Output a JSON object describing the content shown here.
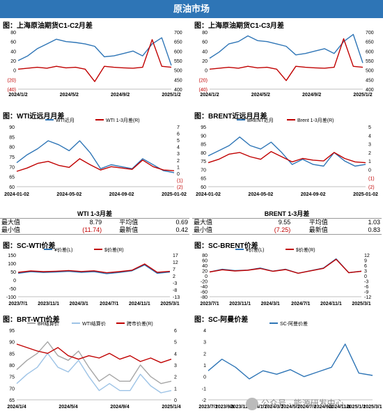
{
  "header": {
    "title": "原油市场"
  },
  "watermark": {
    "text": "公众号 · 能源研发中心"
  },
  "stats": [
    {
      "title": "WTI 1-3月差",
      "rows": [
        {
          "l1": "最大值",
          "v1": "8.79",
          "l2": "平均值",
          "v2": "0.69"
        },
        {
          "l1": "最小值",
          "v1": "(11.74)",
          "l2": "最新值",
          "v2": "0.42"
        }
      ]
    },
    {
      "title": "BRENT 1-3月差",
      "rows": [
        {
          "l1": "最大值",
          "v1": "9.55",
          "l2": "平均值",
          "v2": "1.03"
        },
        {
          "l1": "最小值",
          "v1": "(7.25)",
          "l2": "最新值",
          "v2": "0.83"
        }
      ]
    }
  ],
  "chart_data": [
    {
      "type": "line",
      "title": "图：上海原油期货C1-C2月差",
      "x": [
        "2024/1/2",
        "2024/2/1",
        "2024/3/1",
        "2024/4/1",
        "2024/5/2",
        "2024/6/3",
        "2024/7/1",
        "2024/8/1",
        "2024/9/2",
        "2024/10/8",
        "2024/11/1",
        "2024/12/2",
        "2025/1/2",
        "2025/2/5",
        "2025/3/3",
        "2025/4/1",
        "2025/4/15"
      ],
      "x_ticks": [
        "2024/1/2",
        "2024/5/2",
        "2024/9/2",
        "2025/1/2"
      ],
      "left_axis": {
        "ticks": [
          "80",
          "60",
          "40",
          "20",
          "0",
          "(20)",
          "(40)"
        ],
        "min": -40,
        "max": 80
      },
      "right_axis": {
        "ticks": [
          "700",
          "650",
          "600",
          "550",
          "500",
          "450",
          "400"
        ],
        "min": 400,
        "max": 700
      },
      "series": [
        {
          "axis": "left",
          "color": "#2e75b6",
          "values": [
            20,
            30,
            45,
            55,
            65,
            60,
            58,
            55,
            50,
            28,
            30,
            35,
            40,
            30,
            55,
            68,
            10
          ]
        },
        {
          "axis": "right",
          "color": "#c00000",
          "values": [
            505,
            510,
            515,
            510,
            520,
            512,
            515,
            505,
            440,
            520,
            515,
            512,
            510,
            515,
            660,
            520,
            515
          ]
        }
      ]
    },
    {
      "type": "line",
      "title": "图：上海原油期货C1-C3月差",
      "x": [
        "2024/1/2",
        "2024/2/1",
        "2024/3/1",
        "2024/4/1",
        "2024/5/2",
        "2024/6/3",
        "2024/7/1",
        "2024/8/1",
        "2024/9/2",
        "2024/10/8",
        "2024/11/1",
        "2024/12/2",
        "2025/1/2",
        "2025/2/5",
        "2025/3/3",
        "2025/4/1",
        "2025/4/15"
      ],
      "x_ticks": [
        "2024/1/2",
        "2024/5/2",
        "2024/9/2",
        "2025/1/2"
      ],
      "left_axis": {
        "ticks": [
          "80",
          "60",
          "40",
          "20",
          "0",
          "(20)",
          "(40)"
        ],
        "min": -40,
        "max": 80
      },
      "right_axis": {
        "ticks": [
          "700",
          "650",
          "600",
          "550",
          "500",
          "450",
          "400"
        ],
        "min": 400,
        "max": 700
      },
      "series": [
        {
          "axis": "left",
          "color": "#2e75b6",
          "values": [
            25,
            38,
            55,
            60,
            72,
            62,
            60,
            55,
            50,
            32,
            35,
            40,
            45,
            35,
            60,
            75,
            15
          ]
        },
        {
          "axis": "right",
          "color": "#c00000",
          "values": [
            505,
            510,
            515,
            510,
            520,
            512,
            515,
            505,
            445,
            520,
            515,
            512,
            510,
            515,
            665,
            520,
            515
          ]
        }
      ]
    },
    {
      "type": "line",
      "title": "图：WTI近远月月差",
      "x": [
        "2024-01-02",
        "2024-02-01",
        "2024-03-01",
        "2024-04-01",
        "2024-05-02",
        "2024-06-03",
        "2024-07-01",
        "2024-08-01",
        "2024-09-03",
        "2024-10-01",
        "2024-11-01",
        "2024-12-02",
        "2025-01-02",
        "2025-02-03",
        "2025-03-03",
        "2025-04-01"
      ],
      "x_ticks": [
        "2024-01-02",
        "2024-05-02",
        "2024-09-02",
        "2025-01-02"
      ],
      "left_axis": {
        "ticks": [
          "90",
          "85",
          "80",
          "75",
          "70",
          "65",
          "60"
        ],
        "min": 60,
        "max": 90
      },
      "right_axis": {
        "ticks": [
          "7",
          "6",
          "5",
          "4",
          "3",
          "2",
          "1",
          "0",
          "(1)",
          "(2)"
        ],
        "min": -2,
        "max": 7
      },
      "legend": [
        "WTI近月",
        "WTI 1-3月差(R)"
      ],
      "series": [
        {
          "name": "WTI近月",
          "axis": "left",
          "color": "#2e75b6",
          "values": [
            72,
            76,
            79,
            83,
            81,
            78,
            83,
            77,
            69,
            71,
            70,
            69,
            74,
            71,
            68,
            67
          ]
        },
        {
          "name": "WTI 1-3月差(R)",
          "axis": "right",
          "color": "#c00000",
          "values": [
            0.3,
            0.8,
            1.5,
            1.8,
            1.2,
            0.9,
            2.2,
            1.3,
            0.5,
            1.0,
            0.8,
            0.6,
            2.0,
            1.0,
            0.5,
            0.4
          ]
        }
      ]
    },
    {
      "type": "line",
      "title": "图：BRENT近远月月差",
      "x": [
        "2024-01-02",
        "2024-02-01",
        "2024-03-01",
        "2024-04-01",
        "2024-05-02",
        "2024-06-03",
        "2024-07-01",
        "2024-08-01",
        "2024-09-03",
        "2024-10-01",
        "2024-11-01",
        "2024-12-02",
        "2025-01-02",
        "2025-02-03",
        "2025-03-03",
        "2025-04-01"
      ],
      "x_ticks": [
        "2024-01-02",
        "2024-05-02",
        "2024-09-02",
        "2025-01-02"
      ],
      "left_axis": {
        "ticks": [
          "95",
          "90",
          "85",
          "80",
          "75",
          "70",
          "65",
          "60"
        ],
        "min": 60,
        "max": 95
      },
      "right_axis": {
        "ticks": [
          "5",
          "4",
          "3",
          "2",
          "1",
          "0",
          "(1)",
          "(2)"
        ],
        "min": -2,
        "max": 5
      },
      "legend": [
        "BRENT近月",
        "Brent 1-3月差(R)"
      ],
      "series": [
        {
          "name": "BRENT近月",
          "axis": "left",
          "color": "#2e75b6",
          "values": [
            78,
            81,
            84,
            89,
            84,
            82,
            86,
            80,
            73,
            76,
            73,
            72,
            80,
            75,
            72,
            73
          ]
        },
        {
          "name": "Brent 1-3月差(R)",
          "axis": "right",
          "color": "#c00000",
          "values": [
            0.8,
            1.2,
            1.8,
            2.0,
            1.5,
            1.2,
            2.1,
            1.5,
            0.9,
            1.3,
            1.1,
            1.0,
            2.0,
            1.3,
            0.9,
            0.8
          ]
        }
      ]
    },
    {
      "type": "line",
      "title": "图：SC-WTI价差",
      "x": [
        "2023/7/1",
        "2023/9/1",
        "2023/11/1",
        "2024/1/1",
        "2024/3/1",
        "2024/5/1",
        "2024/7/1",
        "2024/9/1",
        "2024/11/1",
        "2025/1/1",
        "2025/2/15",
        "2025/3/1",
        "2025/3/25"
      ],
      "x_ticks": [
        "2023/7/1",
        "2023/11/1",
        "2024/3/1",
        "2024/7/1",
        "2024/11/1",
        "2025/3/1"
      ],
      "left_axis": {
        "ticks": [
          "150",
          "100",
          "50",
          "0",
          "-50",
          "-100"
        ],
        "min": -100,
        "max": 150
      },
      "right_axis": {
        "ticks": [
          "17",
          "12",
          "7",
          "2",
          "-3",
          "-8",
          "-13"
        ],
        "min": -13,
        "max": 17
      },
      "legend": [
        "¥价差(L)",
        "$价差(R)"
      ],
      "series": [
        {
          "name": "¥价差(L)",
          "axis": "left",
          "color": "#2e75b6",
          "values": [
            40,
            50,
            45,
            48,
            52,
            46,
            50,
            38,
            45,
            55,
            90,
            40,
            48
          ]
        },
        {
          "name": "$价差(R)",
          "axis": "right",
          "color": "#c00000",
          "values": [
            4.5,
            5.5,
            5.0,
            5.3,
            5.8,
            5.1,
            5.6,
            4.2,
            5.0,
            6.0,
            10.5,
            4.5,
            5.2
          ]
        }
      ]
    },
    {
      "type": "line",
      "title": "图：SC-BRENT价差",
      "x": [
        "2023/7/1",
        "2023/9/1",
        "2023/11/1",
        "2024/1/1",
        "2024/3/1",
        "2024/5/1",
        "2024/7/1",
        "2024/9/1",
        "2024/11/1",
        "2025/1/1",
        "2025/2/15",
        "2025/3/1",
        "2025/3/25"
      ],
      "x_ticks": [
        "2023/7/1",
        "2023/11/1",
        "2024/3/1",
        "2024/7/1",
        "2024/11/1",
        "2025/3/1"
      ],
      "left_axis": {
        "ticks": [
          "80",
          "60",
          "40",
          "20",
          "0",
          "-20",
          "-40",
          "-60",
          "-80"
        ],
        "min": -80,
        "max": 80
      },
      "right_axis": {
        "ticks": [
          "12",
          "9",
          "6",
          "3",
          "0",
          "-3",
          "-6",
          "-9",
          "-12"
        ],
        "min": -12,
        "max": 12
      },
      "legend": [
        "¥价差(L)",
        "$价差(R)"
      ],
      "series": [
        {
          "name": "¥价差(L)",
          "axis": "left",
          "color": "#2e75b6",
          "values": [
            15,
            25,
            20,
            22,
            30,
            18,
            25,
            10,
            20,
            30,
            65,
            12,
            18
          ]
        },
        {
          "name": "$价差(R)",
          "axis": "right",
          "color": "#c00000",
          "values": [
            2.2,
            3.5,
            2.8,
            3.2,
            4.2,
            2.6,
            3.6,
            1.5,
            2.9,
            4.3,
            9.5,
            1.8,
            2.6
          ]
        }
      ]
    },
    {
      "type": "line",
      "title": "图：BRT-WTI价差",
      "x": [
        "2024/1/4",
        "2024/2/1",
        "2024/3/1",
        "2024/4/1",
        "2024/5/4",
        "2024/6/3",
        "2024/7/1",
        "2024/8/1",
        "2024/9/4",
        "2024/10/1",
        "2024/11/1",
        "2024/12/2",
        "2025/1/4",
        "2025/2/3",
        "2025/3/3",
        "2025/4/1"
      ],
      "x_ticks": [
        "2024/1/4",
        "2024/5/4",
        "2024/9/4",
        "2025/1/4"
      ],
      "left_axis": {
        "ticks": [
          "95",
          "90",
          "85",
          "80",
          "75",
          "70",
          "65"
        ],
        "min": 65,
        "max": 95
      },
      "right_axis": {
        "ticks": [
          "6",
          "5",
          "4",
          "3",
          "2",
          "1",
          "0"
        ],
        "min": 0,
        "max": 6
      },
      "legend": [
        "BR结算价",
        "WTI结算价",
        "跨市价差(R)"
      ],
      "series": [
        {
          "name": "BR结算价",
          "axis": "left",
          "color": "#a6a6a6",
          "values": [
            78,
            82,
            85,
            90,
            84,
            82,
            86,
            79,
            73,
            76,
            73,
            73,
            80,
            75,
            72,
            73
          ]
        },
        {
          "name": "WTI结算价",
          "axis": "left",
          "color": "#9dc3e6",
          "values": [
            72,
            76,
            79,
            85,
            79,
            77,
            82,
            75,
            69,
            72,
            69,
            69,
            76,
            71,
            68,
            69
          ]
        },
        {
          "name": "跨市价差(R)",
          "axis": "right",
          "color": "#c00000",
          "values": [
            4.8,
            4.5,
            4.2,
            4.0,
            4.5,
            3.8,
            3.5,
            3.8,
            3.6,
            4.0,
            3.5,
            3.8,
            3.3,
            3.6,
            3.2,
            3.5
          ]
        }
      ]
    },
    {
      "type": "line",
      "title": "图：SC-阿曼价差",
      "x": [
        "2023/7/1",
        "2023/9/1",
        "2023/11/1",
        "2024/1/1",
        "2024/3/1",
        "2024/5/1",
        "2024/7/1",
        "2024/9/1",
        "2024/11/1",
        "2025/1/1",
        "2025/2/15",
        "2025/3/1",
        "2025/3/25"
      ],
      "x_ticks": [
        "2023/7/1",
        "2023/9/1",
        "2023/11/1",
        "2024/1/1",
        "2024/3/1",
        "2024/5/1",
        "2024/7/1",
        "2024/9/1",
        "2024/11/1",
        "2025/1/1",
        "2025/3/1"
      ],
      "left_axis": {
        "ticks": [
          "4",
          "3",
          "2",
          "1",
          "0",
          "-1",
          "-2"
        ],
        "min": -2,
        "max": 4
      },
      "legend": [
        "SC-阿曼价差"
      ],
      "series": [
        {
          "name": "SC-阿曼价差",
          "axis": "left",
          "color": "#2e75b6",
          "values": [
            0.5,
            1.5,
            0.8,
            -0.2,
            0.5,
            0.2,
            0.6,
            0.0,
            0.4,
            0.8,
            2.8,
            0.3,
            0.1
          ]
        }
      ]
    }
  ]
}
